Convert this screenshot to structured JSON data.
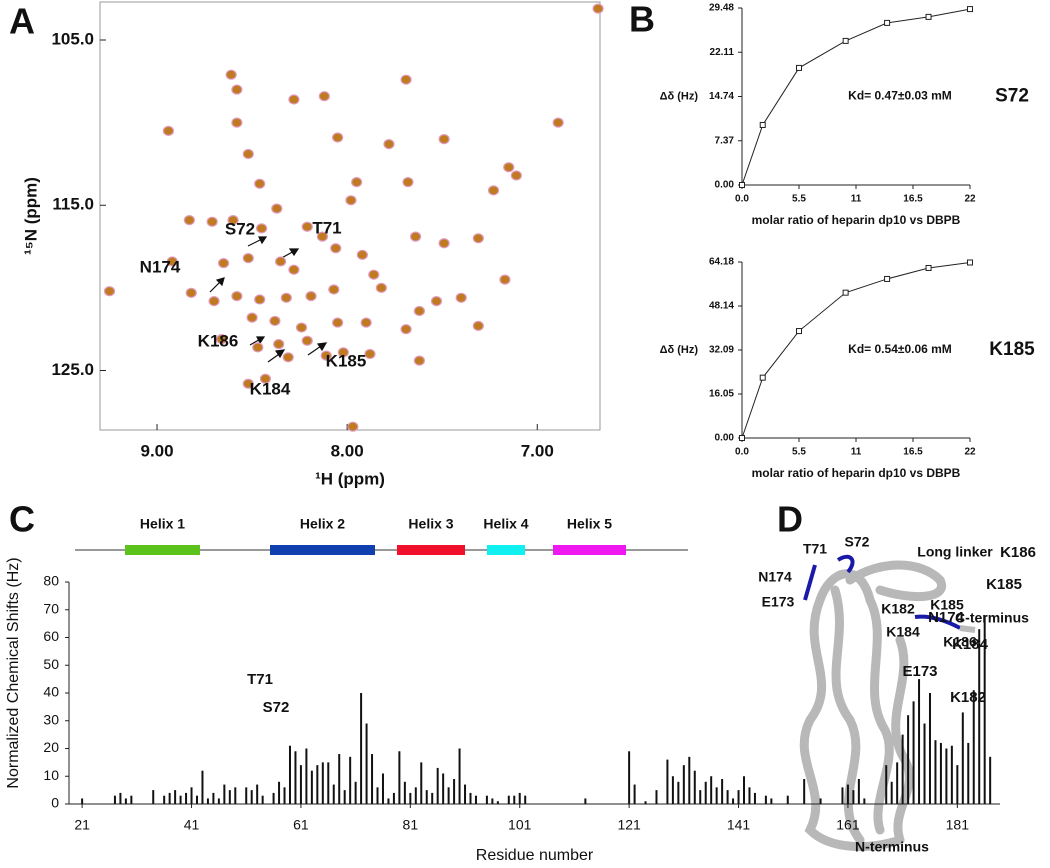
{
  "chart_data": [
    {
      "type": "scatter",
      "panel": "A",
      "x_label": "¹H (ppm)",
      "y_label": "¹⁵N (ppm)",
      "color": "#c07a20",
      "outline": "#e09ac0",
      "x": [
        6.68,
        8.61,
        8.58,
        8.28,
        8.12,
        7.69,
        8.58,
        8.94,
        8.05,
        7.78,
        8.52,
        8.46,
        7.95,
        7.49,
        6.89,
        7.15,
        7.11,
        7.23,
        7.68,
        7.98,
        8.37,
        8.83,
        8.71,
        8.6,
        8.45,
        8.21,
        8.13,
        8.06,
        7.92,
        7.64,
        7.49,
        7.31,
        8.92,
        8.65,
        8.52,
        8.35,
        8.28,
        7.86,
        8.82,
        8.7,
        8.58,
        8.46,
        8.32,
        8.19,
        8.07,
        7.82,
        7.53,
        7.4,
        7.17,
        9.25,
        8.5,
        8.38,
        8.24,
        8.05,
        7.9,
        7.69,
        7.62,
        7.31,
        8.66,
        8.47,
        8.36,
        8.31,
        8.21,
        8.11,
        8.02,
        7.88,
        7.62,
        8.43,
        8.52,
        7.97
      ],
      "y": [
        103.1,
        107.1,
        108.0,
        108.6,
        108.4,
        107.4,
        110.0,
        110.5,
        110.9,
        111.3,
        111.9,
        113.7,
        113.6,
        111.0,
        110.0,
        112.7,
        113.2,
        114.1,
        113.6,
        114.7,
        115.2,
        115.9,
        116.0,
        115.9,
        116.4,
        116.3,
        116.9,
        117.6,
        118.0,
        116.9,
        117.3,
        117.0,
        118.4,
        118.5,
        118.2,
        118.4,
        118.9,
        119.2,
        120.3,
        120.8,
        120.5,
        120.7,
        120.6,
        120.5,
        120.1,
        120.0,
        120.8,
        120.6,
        119.5,
        120.2,
        121.8,
        122.0,
        122.4,
        122.1,
        122.1,
        122.5,
        121.4,
        122.3,
        123.1,
        123.6,
        123.4,
        124.2,
        123.2,
        124.1,
        123.9,
        124.0,
        124.4,
        125.5,
        125.8,
        128.4
      ],
      "xlim": [
        9.3,
        6.67
      ],
      "ylim": [
        128.6,
        102.7
      ],
      "xticks": [
        {
          "value": 9,
          "label": "9.00"
        },
        {
          "value": 8,
          "label": "8.00"
        },
        {
          "value": 7,
          "label": "7.00"
        }
      ],
      "yticks": [
        {
          "value": 105,
          "label": "105.0"
        },
        {
          "value": 115,
          "label": "115.0"
        },
        {
          "value": 125,
          "label": "125.0"
        }
      ],
      "annotations": [
        "S72",
        "T71",
        "N174",
        "K186",
        "K185",
        "K184"
      ]
    },
    {
      "type": "line",
      "panel": "B",
      "x_label": "molar ratio of heparin dp10 vs DBPB",
      "y_label": "Δδ (Hz)",
      "kd_label": "Kd= 0.47±0.03 mM",
      "residue_label": "S72",
      "color": "#222",
      "x": [
        0,
        2,
        5.5,
        10,
        14,
        18,
        22
      ],
      "values": [
        0,
        10,
        19.5,
        24,
        27,
        28,
        29.3
      ],
      "xlim": [
        0,
        22
      ],
      "ylim": [
        0,
        29.48
      ],
      "xticks": [
        {
          "value": 0,
          "label": "0.0"
        },
        5.5,
        11,
        16.5,
        22
      ],
      "yticks": [
        {
          "value": 0,
          "label": "0.00"
        },
        7.37,
        14.74,
        22.11,
        29.48
      ]
    },
    {
      "type": "line",
      "x_label": "molar ratio of heparin dp10 vs DBPB",
      "y_label": "Δδ (Hz)",
      "kd_label": "Kd= 0.54±0.06 mM",
      "residue_label": "K185",
      "color": "#222",
      "x": [
        0,
        2,
        5.5,
        10,
        14,
        18,
        22
      ],
      "values": [
        0,
        22,
        39,
        53,
        58,
        62,
        64
      ],
      "xlim": [
        0,
        22
      ],
      "ylim": [
        0,
        64.18
      ],
      "xticks": [
        {
          "value": 0,
          "label": "0.0"
        },
        5.5,
        11,
        16.5,
        22
      ],
      "yticks": [
        {
          "value": 0,
          "label": "0.00"
        },
        16.05,
        32.09,
        48.14,
        64.18
      ]
    },
    {
      "type": "bar",
      "panel": "C",
      "x_label": "Residue number",
      "y_label": "Normalized Chemical Shifts (Hz)",
      "color": "#111",
      "helices": [
        {
          "name": "Helix 1",
          "color": "#5cc21c"
        },
        {
          "name": "Helix 2",
          "color": "#1040b0"
        },
        {
          "name": "Helix 3",
          "color": "#f0102a"
        },
        {
          "name": "Helix 4",
          "color": "#10f0f0"
        },
        {
          "name": "Helix 5",
          "color": "#f018f0"
        }
      ],
      "x": [
        21,
        27,
        28,
        29,
        30,
        34,
        36,
        37,
        38,
        39,
        40,
        41,
        42,
        43,
        44,
        45,
        46,
        47,
        48,
        49,
        51,
        52,
        53,
        54,
        56,
        57,
        58,
        59,
        60,
        61,
        62,
        63,
        64,
        65,
        66,
        67,
        68,
        69,
        70,
        71,
        72,
        73,
        74,
        75,
        76,
        77,
        78,
        79,
        80,
        81,
        82,
        83,
        84,
        85,
        86,
        87,
        88,
        89,
        90,
        91,
        92,
        93,
        95,
        96,
        97,
        99,
        100,
        101,
        102,
        113,
        121,
        122,
        124,
        126,
        128,
        129,
        130,
        131,
        132,
        133,
        134,
        135,
        136,
        137,
        138,
        139,
        140,
        141,
        142,
        143,
        144,
        146,
        147,
        150,
        153,
        156,
        160,
        161,
        162,
        163,
        164,
        168,
        169,
        170,
        171,
        172,
        173,
        174,
        175,
        176,
        177,
        178,
        179,
        180,
        181,
        182,
        183,
        184,
        185,
        186,
        187
      ],
      "values": [
        2,
        3,
        4,
        2,
        3,
        5,
        3,
        4,
        5,
        3,
        4,
        6,
        3,
        12,
        2,
        4,
        2,
        7,
        5,
        6,
        6,
        5,
        7,
        3,
        4,
        8,
        6,
        21,
        19,
        14,
        20,
        12,
        14,
        15,
        15,
        7,
        18,
        5,
        17,
        8,
        40,
        29,
        18,
        6,
        11,
        2,
        4,
        19,
        8,
        4,
        6,
        15,
        5,
        4,
        13,
        11,
        6,
        9,
        20,
        7,
        4,
        3,
        3,
        2,
        1,
        3,
        3,
        4,
        3,
        2,
        19,
        7,
        1,
        5,
        16,
        10,
        8,
        14,
        17,
        12,
        5,
        8,
        10,
        6,
        9,
        5,
        2,
        5,
        10,
        6,
        4,
        3,
        2,
        3,
        9,
        2,
        6,
        7,
        5,
        9,
        2,
        14,
        8,
        15,
        25,
        32,
        37,
        45,
        29,
        40,
        23,
        22,
        20,
        21,
        14,
        33,
        22,
        41,
        63,
        68,
        17
      ],
      "xlim": [
        18.6,
        188.8
      ],
      "ylim": [
        0,
        80
      ],
      "xticks": [
        21,
        41,
        61,
        81,
        101,
        121,
        141,
        161,
        181
      ],
      "yticks": [
        0,
        10,
        20,
        30,
        40,
        50,
        60,
        70,
        80
      ],
      "annotations": [
        "T71",
        "S72",
        "K186",
        "K185",
        "N174",
        "K184",
        "E173",
        "K182"
      ]
    }
  ],
  "structure_panel": {
    "panel": "D",
    "labels": [
      "T71",
      "S72",
      "Long linker",
      "N174",
      "E173",
      "K182",
      "K185",
      "C-terminus",
      "K184",
      "K186",
      "N-terminus"
    ]
  }
}
